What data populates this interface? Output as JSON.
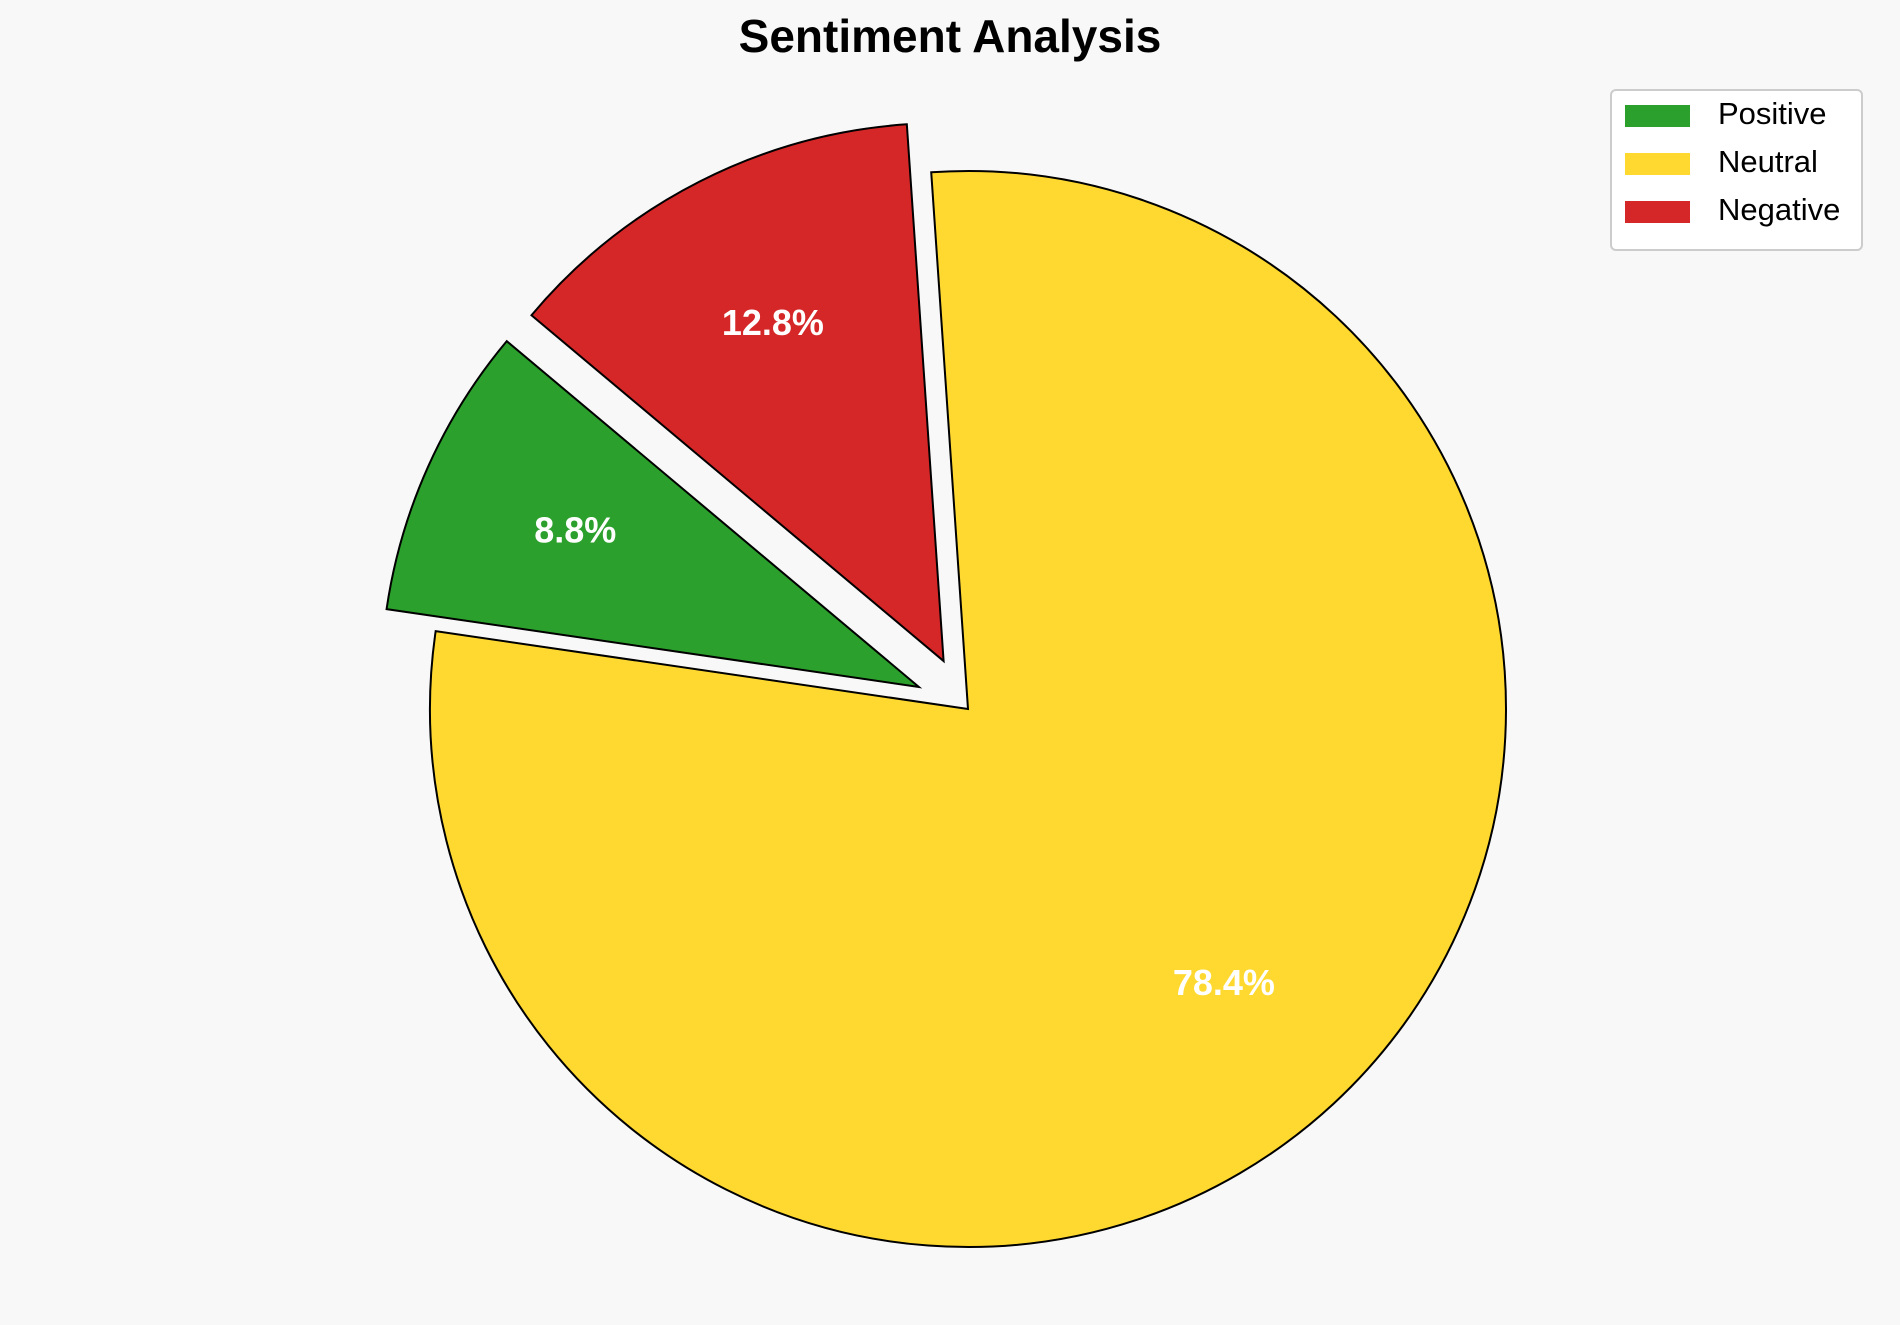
{
  "chart_data": {
    "type": "pie",
    "title": "Sentiment Analysis",
    "categories": [
      "Positive",
      "Neutral",
      "Negative"
    ],
    "values": [
      8.8,
      78.4,
      12.8
    ],
    "value_labels": [
      "8.8%",
      "78.4%",
      "12.8%"
    ],
    "colors": [
      "#2ca02c",
      "#ffd92f",
      "#d62728"
    ],
    "explode": [
      0.1,
      0,
      0.1
    ],
    "startangle": 140,
    "legend": "upper right"
  }
}
